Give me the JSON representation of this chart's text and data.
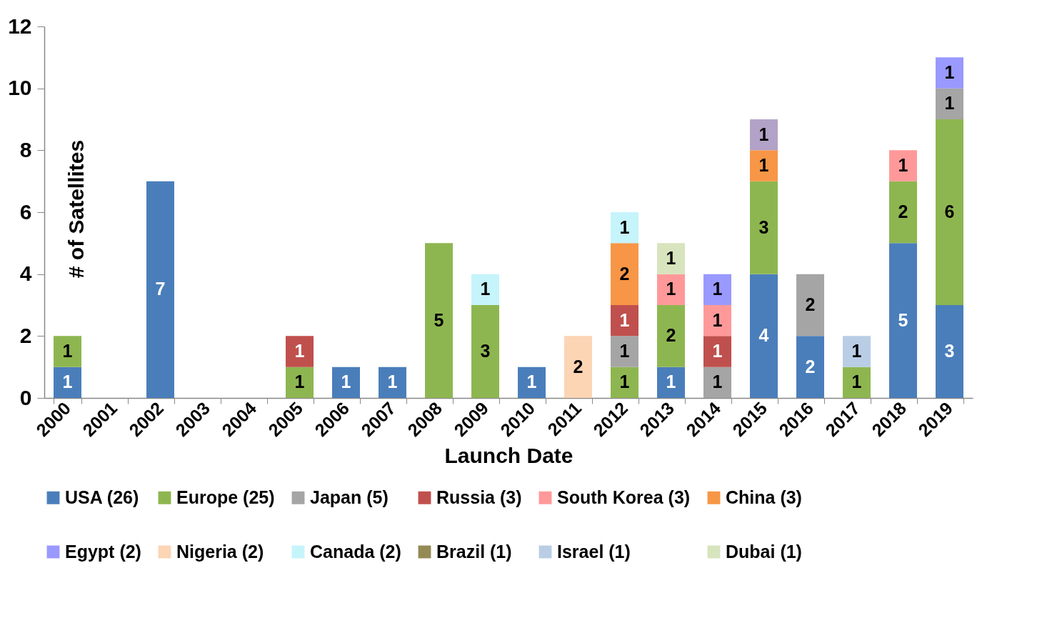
{
  "chart_data": {
    "type": "bar",
    "stacked": true,
    "xlabel": "Launch Date",
    "ylabel": "# of Satellites",
    "categories": [
      "2000",
      "2001",
      "2002",
      "2003",
      "2004",
      "2005",
      "2006",
      "2007",
      "2008",
      "2009",
      "2010",
      "2011",
      "2012",
      "2013",
      "2014",
      "2015",
      "2016",
      "2017",
      "2018",
      "2019"
    ],
    "ylim": [
      0,
      12
    ],
    "yticks": [
      0,
      2,
      4,
      6,
      8,
      10,
      12
    ],
    "grid": false,
    "legend": "bottom",
    "data_labels": true,
    "series": [
      {
        "name": "USA (26)",
        "color": "#4a7ebb",
        "values": [
          1,
          null,
          7,
          null,
          null,
          null,
          1,
          1,
          null,
          null,
          1,
          null,
          null,
          1,
          null,
          4,
          2,
          null,
          5,
          3
        ]
      },
      {
        "name": "Europe (25)",
        "color": "#8eb650",
        "values": [
          1,
          null,
          null,
          null,
          null,
          1,
          null,
          null,
          5,
          3,
          null,
          null,
          1,
          2,
          null,
          3,
          null,
          1,
          2,
          6
        ]
      },
      {
        "name": "Japan (5)",
        "color": "#a5a5a5",
        "values": [
          null,
          null,
          null,
          null,
          null,
          null,
          null,
          null,
          null,
          null,
          null,
          null,
          1,
          null,
          1,
          null,
          2,
          null,
          null,
          1
        ]
      },
      {
        "name": "Russia (3)",
        "color": "#c0504d",
        "values": [
          null,
          null,
          null,
          null,
          null,
          1,
          null,
          null,
          null,
          null,
          null,
          null,
          1,
          null,
          1,
          null,
          null,
          null,
          null,
          null
        ]
      },
      {
        "name": "South Korea (3)",
        "color": "#ff9999",
        "values": [
          null,
          null,
          null,
          null,
          null,
          null,
          null,
          null,
          null,
          null,
          null,
          null,
          null,
          1,
          1,
          null,
          null,
          null,
          1,
          null
        ]
      },
      {
        "name": "China (3)",
        "color": "#f79646",
        "values": [
          null,
          null,
          null,
          null,
          null,
          null,
          null,
          null,
          null,
          null,
          null,
          null,
          2,
          null,
          null,
          1,
          null,
          null,
          null,
          null
        ]
      },
      {
        "name": "Egypt (2)",
        "color": "#9999ff",
        "values": [
          null,
          null,
          null,
          null,
          null,
          null,
          null,
          null,
          null,
          null,
          null,
          null,
          null,
          null,
          1,
          null,
          null,
          null,
          null,
          1
        ]
      },
      {
        "name": "Nigeria (2)",
        "color": "#fcd5b5",
        "values": [
          null,
          null,
          null,
          null,
          null,
          null,
          null,
          null,
          null,
          null,
          null,
          2,
          null,
          null,
          null,
          null,
          null,
          null,
          null,
          null
        ]
      },
      {
        "name": "Canada (2)",
        "color": "#c6f4fb",
        "values": [
          null,
          null,
          null,
          null,
          null,
          null,
          null,
          null,
          null,
          1,
          null,
          null,
          1,
          null,
          null,
          null,
          null,
          null,
          null,
          null
        ]
      },
      {
        "name": "Brazil (1)",
        "color": "#948a54",
        "values": [
          null,
          null,
          null,
          null,
          null,
          null,
          null,
          null,
          null,
          null,
          null,
          null,
          null,
          null,
          null,
          null,
          null,
          null,
          null,
          null
        ]
      },
      {
        "name": "Israel (1)",
        "color": "#b9cde5",
        "values": [
          null,
          null,
          null,
          null,
          null,
          null,
          null,
          null,
          null,
          null,
          null,
          null,
          null,
          null,
          null,
          null,
          null,
          1,
          null,
          null
        ]
      },
      {
        "name": "Dubai (1)",
        "color": "#d7e4bd",
        "values": [
          null,
          null,
          null,
          null,
          null,
          null,
          null,
          null,
          null,
          null,
          null,
          null,
          null,
          1,
          null,
          null,
          null,
          null,
          null,
          null
        ]
      },
      {
        "color": "#b3a2c7",
        "values": [
          null,
          null,
          null,
          null,
          null,
          null,
          null,
          null,
          null,
          null,
          null,
          null,
          null,
          null,
          null,
          1,
          null,
          null,
          null,
          null
        ]
      }
    ]
  }
}
